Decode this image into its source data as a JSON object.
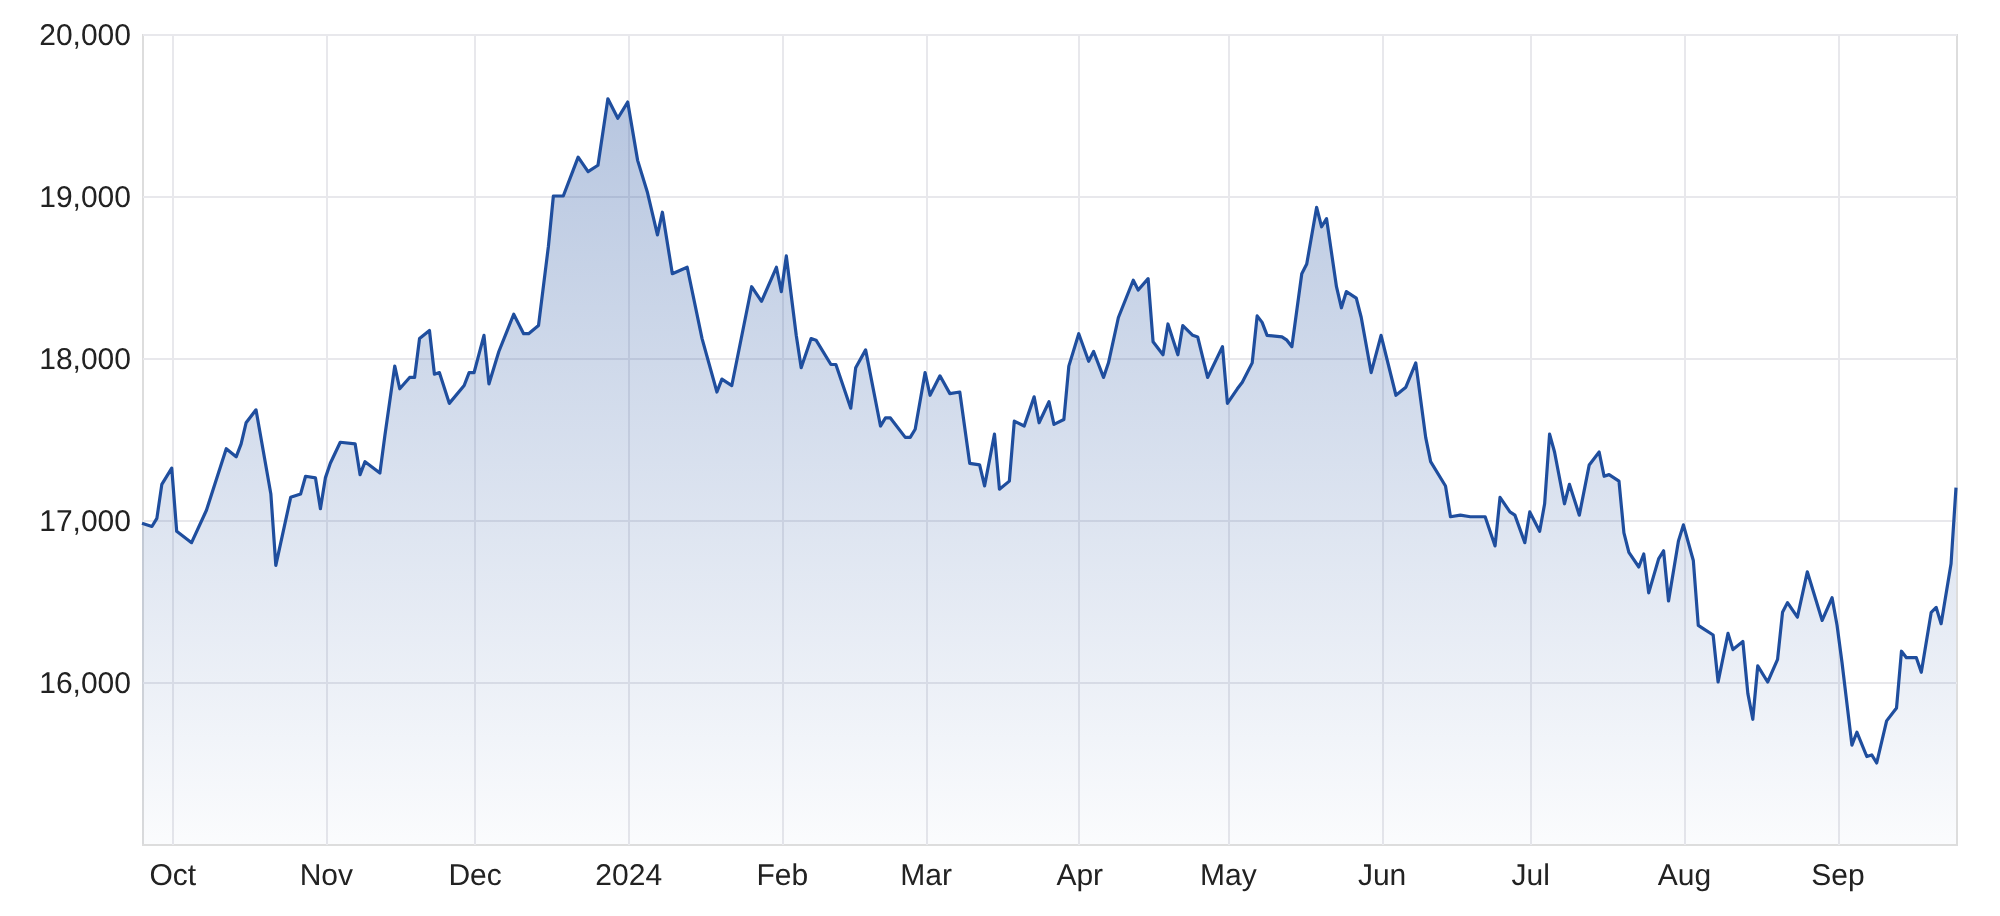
{
  "chart_data": {
    "type": "area",
    "x": [
      "2023-09-25",
      "2023-09-27",
      "2023-09-28",
      "2023-09-29",
      "2023-10-01",
      "2023-10-02",
      "2023-10-05",
      "2023-10-08",
      "2023-10-12",
      "2023-10-14",
      "2023-10-15",
      "2023-10-16",
      "2023-10-18",
      "2023-10-21",
      "2023-10-22",
      "2023-10-25",
      "2023-10-27",
      "2023-10-28",
      "2023-10-30",
      "2023-10-31",
      "2023-11-01",
      "2023-11-02",
      "2023-11-04",
      "2023-11-07",
      "2023-11-08",
      "2023-11-09",
      "2023-11-12",
      "2023-11-13",
      "2023-11-15",
      "2023-11-16",
      "2023-11-18",
      "2023-11-19",
      "2023-11-20",
      "2023-11-22",
      "2023-11-23",
      "2023-11-24",
      "2023-11-26",
      "2023-11-29",
      "2023-11-30",
      "2023-12-01",
      "2023-12-03",
      "2023-12-04",
      "2023-12-06",
      "2023-12-09",
      "2023-12-11",
      "2023-12-12",
      "2023-12-14",
      "2023-12-16",
      "2023-12-17",
      "2023-12-19",
      "2023-12-21",
      "2023-12-22",
      "2023-12-24",
      "2023-12-26",
      "2023-12-28",
      "2023-12-30",
      "2024-01-01",
      "2024-01-03",
      "2024-01-05",
      "2024-01-07",
      "2024-01-08",
      "2024-01-10",
      "2024-01-13",
      "2024-01-16",
      "2024-01-19",
      "2024-01-20",
      "2024-01-22",
      "2024-01-26",
      "2024-01-28",
      "2024-01-31",
      "2024-02-01",
      "2024-02-02",
      "2024-02-04",
      "2024-02-05",
      "2024-02-07",
      "2024-02-08",
      "2024-02-11",
      "2024-02-12",
      "2024-02-15",
      "2024-02-16",
      "2024-02-18",
      "2024-02-21",
      "2024-02-22",
      "2024-02-23",
      "2024-02-26",
      "2024-02-27",
      "2024-02-28",
      "2024-03-01",
      "2024-03-02",
      "2024-03-04",
      "2024-03-06",
      "2024-03-08",
      "2024-03-10",
      "2024-03-12",
      "2024-03-13",
      "2024-03-15",
      "2024-03-16",
      "2024-03-18",
      "2024-03-19",
      "2024-03-21",
      "2024-03-23",
      "2024-03-24",
      "2024-03-26",
      "2024-03-27",
      "2024-03-29",
      "2024-03-30",
      "2024-04-01",
      "2024-04-03",
      "2024-04-04",
      "2024-04-06",
      "2024-04-07",
      "2024-04-09",
      "2024-04-12",
      "2024-04-13",
      "2024-04-15",
      "2024-04-16",
      "2024-04-18",
      "2024-04-19",
      "2024-04-21",
      "2024-04-22",
      "2024-04-24",
      "2024-04-25",
      "2024-04-27",
      "2024-04-30",
      "2024-05-01",
      "2024-05-03",
      "2024-05-04",
      "2024-05-06",
      "2024-05-07",
      "2024-05-08",
      "2024-05-09",
      "2024-05-12",
      "2024-05-13",
      "2024-05-14",
      "2024-05-16",
      "2024-05-17",
      "2024-05-19",
      "2024-05-20",
      "2024-05-21",
      "2024-05-23",
      "2024-05-24",
      "2024-05-25",
      "2024-05-27",
      "2024-05-28",
      "2024-05-30",
      "2024-06-01",
      "2024-06-04",
      "2024-06-06",
      "2024-06-08",
      "2024-06-10",
      "2024-06-11",
      "2024-06-14",
      "2024-06-15",
      "2024-06-17",
      "2024-06-19",
      "2024-06-22",
      "2024-06-24",
      "2024-06-25",
      "2024-06-27",
      "2024-06-28",
      "2024-06-30",
      "2024-07-01",
      "2024-07-03",
      "2024-07-04",
      "2024-07-05",
      "2024-07-06",
      "2024-07-08",
      "2024-07-09",
      "2024-07-11",
      "2024-07-13",
      "2024-07-15",
      "2024-07-16",
      "2024-07-17",
      "2024-07-19",
      "2024-07-20",
      "2024-07-21",
      "2024-07-23",
      "2024-07-24",
      "2024-07-25",
      "2024-07-27",
      "2024-07-28",
      "2024-07-29",
      "2024-07-31",
      "2024-08-01",
      "2024-08-03",
      "2024-08-04",
      "2024-08-05",
      "2024-08-07",
      "2024-08-08",
      "2024-08-10",
      "2024-08-11",
      "2024-08-13",
      "2024-08-14",
      "2024-08-15",
      "2024-08-16",
      "2024-08-18",
      "2024-08-20",
      "2024-08-21",
      "2024-08-22",
      "2024-08-24",
      "2024-08-26",
      "2024-08-29",
      "2024-08-31",
      "2024-09-01",
      "2024-09-02",
      "2024-09-04",
      "2024-09-05",
      "2024-09-07",
      "2024-09-08",
      "2024-09-09",
      "2024-09-11",
      "2024-09-13",
      "2024-09-14",
      "2024-09-15",
      "2024-09-17",
      "2024-09-18",
      "2024-09-20",
      "2024-09-21",
      "2024-09-22",
      "2024-09-24",
      "2024-09-25"
    ],
    "series": [
      {
        "color": "#1f4e9e",
        "values": [
          16980,
          16960,
          17010,
          17220,
          17320,
          16930,
          16860,
          17060,
          17440,
          17390,
          17470,
          17600,
          17680,
          17160,
          16720,
          17140,
          17160,
          17270,
          17260,
          17070,
          17260,
          17350,
          17480,
          17470,
          17280,
          17360,
          17290,
          17520,
          17950,
          17810,
          17880,
          17880,
          18120,
          18170,
          17900,
          17910,
          17720,
          17830,
          17910,
          17910,
          18140,
          17840,
          18040,
          18270,
          18150,
          18150,
          18200,
          18690,
          19000,
          19000,
          19160,
          19240,
          19150,
          19190,
          19600,
          19480,
          19580,
          19220,
          19020,
          18760,
          18900,
          18520,
          18560,
          18120,
          17790,
          17870,
          17830,
          18440,
          18350,
          18560,
          18410,
          18630,
          18140,
          17940,
          18120,
          18110,
          17960,
          17960,
          17690,
          17940,
          18050,
          17580,
          17630,
          17630,
          17510,
          17510,
          17560,
          17910,
          17770,
          17890,
          17780,
          17790,
          17350,
          17340,
          17210,
          17530,
          17190,
          17240,
          17610,
          17580,
          17760,
          17600,
          17730,
          17590,
          17620,
          17950,
          18150,
          17980,
          18040,
          17880,
          17970,
          18250,
          18480,
          18420,
          18490,
          18100,
          18020,
          18210,
          18020,
          18200,
          18140,
          18130,
          17880,
          18070,
          17720,
          17810,
          17850,
          17970,
          18260,
          18220,
          18140,
          18130,
          18110,
          18070,
          18520,
          18580,
          18930,
          18810,
          18860,
          18440,
          18310,
          18410,
          18370,
          18250,
          17910,
          18140,
          17770,
          17820,
          17970,
          17510,
          17360,
          17210,
          17020,
          17030,
          17020,
          17020,
          16840,
          17140,
          17050,
          17030,
          16860,
          17050,
          16930,
          17100,
          17530,
          17420,
          17100,
          17220,
          17030,
          17340,
          17420,
          17270,
          17280,
          17240,
          16920,
          16800,
          16710,
          16790,
          16550,
          16760,
          16810,
          16500,
          16870,
          16970,
          16750,
          16350,
          16330,
          16290,
          16000,
          16300,
          16200,
          16250,
          15930,
          15770,
          16100,
          16000,
          16140,
          16430,
          16490,
          16400,
          16680,
          16380,
          16520,
          16350,
          16120,
          15610,
          15690,
          15540,
          15550,
          15500,
          15760,
          15840,
          16190,
          16150,
          16150,
          16060,
          16430,
          16460,
          16360,
          16730,
          17200
        ]
      }
    ],
    "xlim": [
      "2023-09-25",
      "2024-09-25"
    ],
    "xticks": [
      {
        "value": "2023-10-01",
        "label": "Oct"
      },
      {
        "value": "2023-11-01",
        "label": "Nov"
      },
      {
        "value": "2023-12-01",
        "label": "Dec"
      },
      {
        "value": "2024-01-01",
        "label": "2024"
      },
      {
        "value": "2024-02-01",
        "label": "Feb"
      },
      {
        "value": "2024-03-01",
        "label": "Mar"
      },
      {
        "value": "2024-04-01",
        "label": "Apr"
      },
      {
        "value": "2024-05-01",
        "label": "May"
      },
      {
        "value": "2024-06-01",
        "label": "Jun"
      },
      {
        "value": "2024-07-01",
        "label": "Jul"
      },
      {
        "value": "2024-08-01",
        "label": "Aug"
      },
      {
        "value": "2024-09-01",
        "label": "Sep"
      }
    ],
    "ylim": [
      15000,
      20000
    ],
    "yticks": [
      {
        "value": 16000,
        "label": "16,000"
      },
      {
        "value": 17000,
        "label": "17,000"
      },
      {
        "value": 18000,
        "label": "18,000"
      },
      {
        "value": 19000,
        "label": "19,000"
      },
      {
        "value": 20000,
        "label": "20,000"
      }
    ],
    "grid": true
  }
}
